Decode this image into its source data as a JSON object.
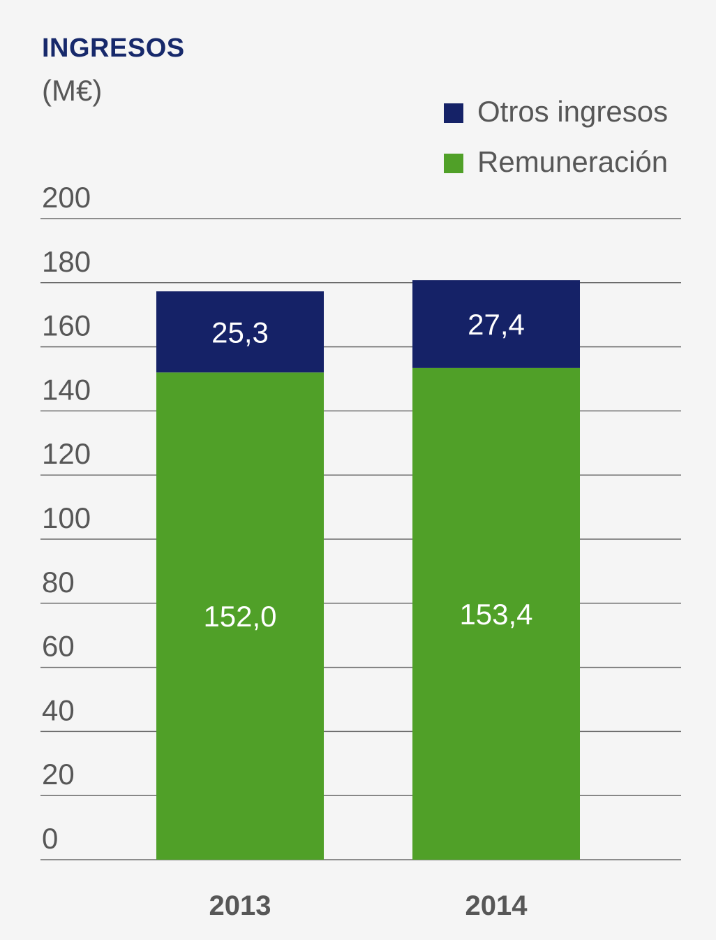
{
  "chart_data": {
    "type": "bar",
    "stacked": true,
    "title": "INGRESOS",
    "subtitle": "(M€)",
    "categories": [
      "2013",
      "2014"
    ],
    "series": [
      {
        "name": "Remuneración",
        "values": [
          152.0,
          153.4
        ],
        "labels": [
          "152,0",
          "153,4"
        ],
        "color": "#50a028"
      },
      {
        "name": "Otros ingresos",
        "values": [
          25.3,
          27.4
        ],
        "labels": [
          "25,3",
          "27,4"
        ],
        "color": "#152267"
      }
    ],
    "ylim": [
      0,
      200
    ],
    "yticks": [
      0,
      20,
      40,
      60,
      80,
      100,
      120,
      140,
      160,
      180,
      200
    ],
    "ytick_labels": [
      "0",
      "20",
      "40",
      "60",
      "80",
      "100",
      "120",
      "140",
      "160",
      "180",
      "200"
    ],
    "grid": true,
    "legend_position": "top-right",
    "legend_order": [
      "Otros ingresos",
      "Remuneración"
    ]
  }
}
